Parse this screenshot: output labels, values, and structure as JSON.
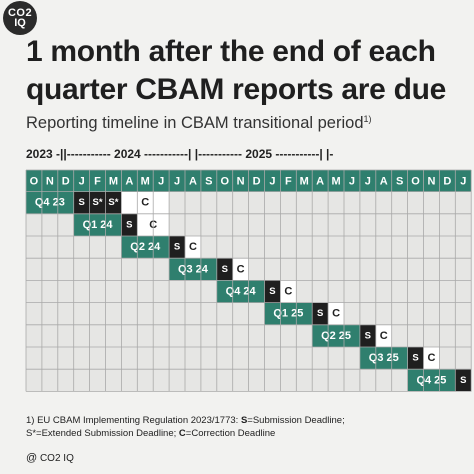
{
  "brand": {
    "logo_line1": "CO2",
    "logo_line2": "IQ"
  },
  "title": "1 month after the end of each quarter CBAM reports are due",
  "subtitle": "Reporting timeline in CBAM transitional period",
  "subtitle_note": "1)",
  "year_line": "2023 -||----------- 2024 -----------|  |----------- 2025 -----------|  |-",
  "footnote": {
    "line1_prefix": "1) EU CBAM Implementing Regulation 2023/1773: ",
    "s_key": "S",
    "s_text": "=Submission Deadline;",
    "s2_key": "S*",
    "s2_text": "=Extended Submission Deadline; ",
    "c_key": "C",
    "c_text": "=Correction  Deadline"
  },
  "source": {
    "mark": "@",
    "text": "CO2 IQ"
  },
  "colors": {
    "header": "#2f7f6e",
    "quarter": "#2f7f6e",
    "submission": "#1f1f1f",
    "correction": "#ffffff",
    "empty": "#e6e6e4",
    "grid_line": "#a9a9a9"
  },
  "chart_data": {
    "type": "table",
    "months": [
      "O",
      "N",
      "D",
      "J",
      "F",
      "M",
      "A",
      "M",
      "J",
      "J",
      "A",
      "S",
      "O",
      "N",
      "D",
      "J",
      "F",
      "M",
      "A",
      "M",
      "J",
      "J",
      "A",
      "S",
      "O",
      "N",
      "D",
      "J"
    ],
    "rows": [
      {
        "quarter": "Q4 23",
        "q_start": 0,
        "q_span": 3,
        "submissions": [
          {
            "col": 3,
            "label": "S"
          },
          {
            "col": 4,
            "label": "S*"
          },
          {
            "col": 5,
            "label": "S*"
          }
        ],
        "correction": {
          "col": 6,
          "span": 3,
          "label": "C"
        }
      },
      {
        "quarter": "Q1 24",
        "q_start": 3,
        "q_span": 3,
        "submissions": [
          {
            "col": 6,
            "label": "S"
          }
        ],
        "correction": {
          "col": 7,
          "span": 2,
          "label": "C"
        }
      },
      {
        "quarter": "Q2 24",
        "q_start": 6,
        "q_span": 3,
        "submissions": [
          {
            "col": 9,
            "label": "S"
          }
        ],
        "correction": {
          "col": 10,
          "span": 1,
          "label": "C"
        }
      },
      {
        "quarter": "Q3 24",
        "q_start": 9,
        "q_span": 3,
        "submissions": [
          {
            "col": 12,
            "label": "S"
          }
        ],
        "correction": {
          "col": 13,
          "span": 1,
          "label": "C"
        }
      },
      {
        "quarter": "Q4 24",
        "q_start": 12,
        "q_span": 3,
        "submissions": [
          {
            "col": 15,
            "label": "S"
          }
        ],
        "correction": {
          "col": 16,
          "span": 1,
          "label": "C"
        }
      },
      {
        "quarter": "Q1 25",
        "q_start": 15,
        "q_span": 3,
        "submissions": [
          {
            "col": 18,
            "label": "S"
          }
        ],
        "correction": {
          "col": 19,
          "span": 1,
          "label": "C"
        }
      },
      {
        "quarter": "Q2 25",
        "q_start": 18,
        "q_span": 3,
        "submissions": [
          {
            "col": 21,
            "label": "S"
          }
        ],
        "correction": {
          "col": 22,
          "span": 1,
          "label": "C"
        }
      },
      {
        "quarter": "Q3 25",
        "q_start": 21,
        "q_span": 3,
        "submissions": [
          {
            "col": 24,
            "label": "S"
          }
        ],
        "correction": {
          "col": 25,
          "span": 1,
          "label": "C"
        }
      },
      {
        "quarter": "Q4 25",
        "q_start": 24,
        "q_span": 3,
        "submissions": [
          {
            "col": 27,
            "label": "S"
          }
        ],
        "correction": null
      }
    ]
  }
}
